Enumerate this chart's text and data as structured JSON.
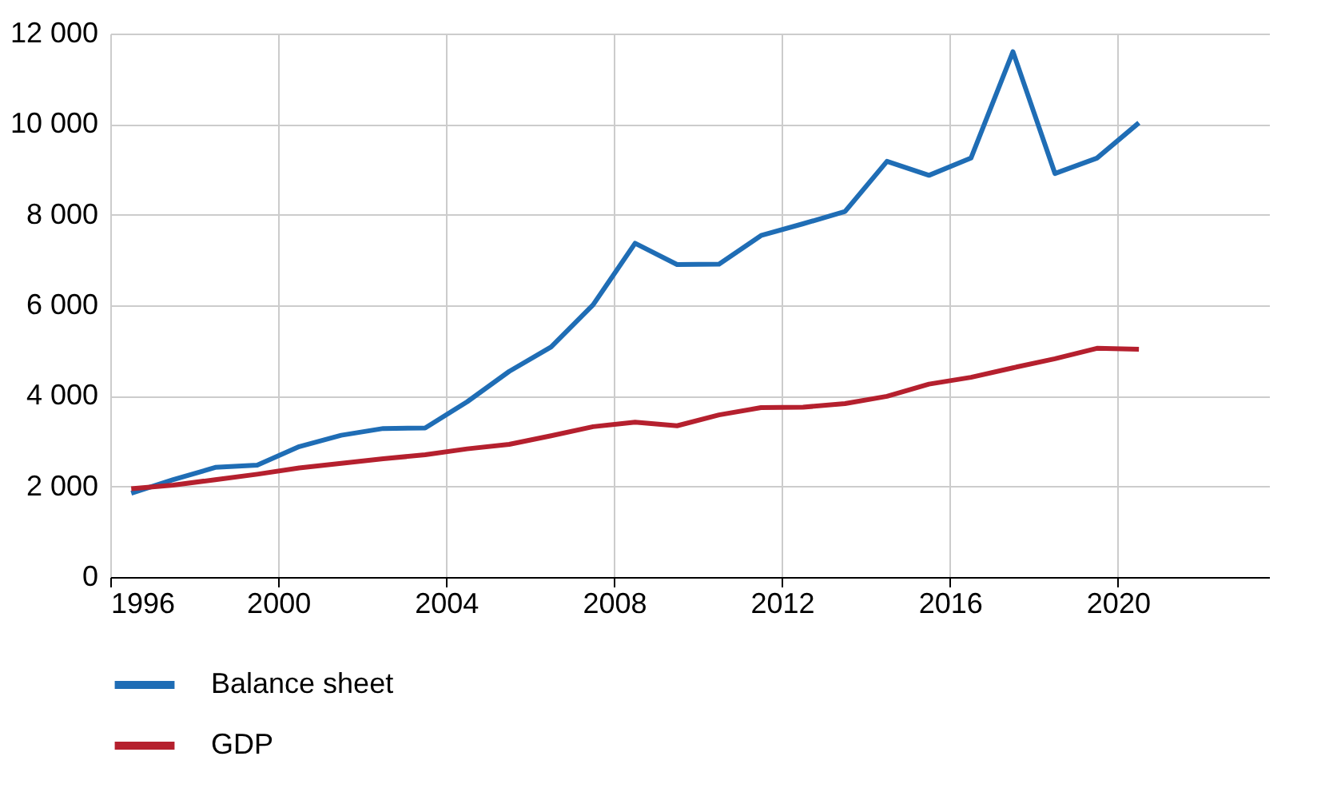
{
  "chart_data": {
    "type": "line",
    "x": [
      1996.5,
      1997.5,
      1998.5,
      1999.5,
      2000.5,
      2001.5,
      2002.5,
      2003.5,
      2004.5,
      2005.5,
      2006.5,
      2007.5,
      2008.5,
      2009.5,
      2010.5,
      2011.5,
      2012.5,
      2013.5,
      2014.5,
      2015.5,
      2016.5,
      2017.5,
      2018.5,
      2019.5,
      2020.5
    ],
    "series": [
      {
        "name": "Balance sheet",
        "color": "#1f6db5",
        "values": [
          1850,
          2150,
          2420,
          2470,
          2880,
          3130,
          3280,
          3290,
          3870,
          4540,
          5080,
          6010,
          7370,
          6900,
          6910,
          7540,
          7800,
          8070,
          9180,
          8870,
          9250,
          11600,
          8910,
          9250,
          10030
        ]
      },
      {
        "name": "GDP",
        "color": "#b5202e",
        "values": [
          1950,
          2030,
          2150,
          2270,
          2410,
          2510,
          2610,
          2700,
          2830,
          2930,
          3120,
          3320,
          3420,
          3340,
          3580,
          3740,
          3750,
          3830,
          3990,
          4260,
          4410,
          4620,
          4820,
          5050,
          5030
        ]
      }
    ],
    "xlim": [
      1996,
      2023.6
    ],
    "xticks": [
      1996,
      2000,
      2004,
      2008,
      2012,
      2016,
      2020
    ],
    "ylim": [
      0,
      12000
    ],
    "yticks": [
      0,
      {
        "value": 2000,
        "label": "2 000"
      },
      {
        "value": 4000,
        "label": "4 000"
      },
      {
        "value": 6000,
        "label": "6 000"
      },
      {
        "value": 8000,
        "label": "8 000"
      },
      {
        "value": 10000,
        "label": "10 000"
      },
      {
        "value": 12000,
        "label": "12 000"
      }
    ],
    "grid": true,
    "legend": "bottom",
    "marker": "none",
    "line_style": "solid"
  }
}
